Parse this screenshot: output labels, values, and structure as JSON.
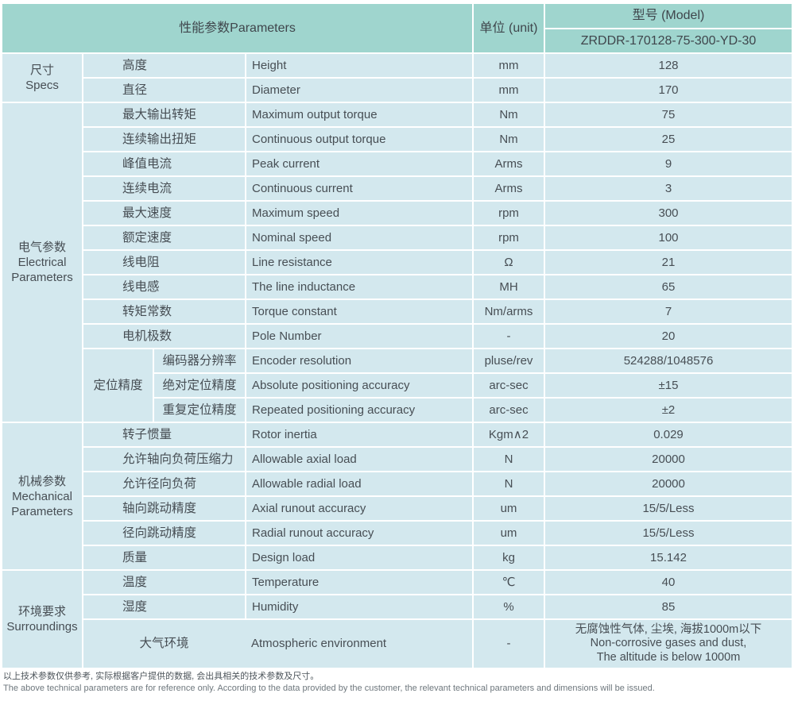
{
  "header": {
    "parameters": "性能参数Parameters",
    "unit": "单位 (unit)",
    "model": "型号 (Model)",
    "model_number": "ZRDDR-170128-75-300-YD-30"
  },
  "sections": {
    "specs": "尺寸\nSpecs",
    "electrical": "电气参数\nElectrical\nParameters",
    "mechanical": "机械参数\nMechanical\nParameters",
    "surroundings": "环境要求\nSurroundings"
  },
  "subsection": {
    "label": "定位精度"
  },
  "rows": [
    {
      "cn": "高度",
      "en": "Height",
      "unit": "mm",
      "value": "128"
    },
    {
      "cn": "直径",
      "en": "Diameter",
      "unit": "mm",
      "value": "170"
    },
    {
      "cn": "最大输出转矩",
      "en": "Maximum output torque",
      "unit": "Nm",
      "value": "75"
    },
    {
      "cn": "连续输出扭矩",
      "en": "Continuous output torque",
      "unit": "Nm",
      "value": "25"
    },
    {
      "cn": "峰值电流",
      "en": "Peak current",
      "unit": "Arms",
      "value": "9"
    },
    {
      "cn": "连续电流",
      "en": "Continuous current",
      "unit": "Arms",
      "value": "3"
    },
    {
      "cn": "最大速度",
      "en": "Maximum speed",
      "unit": "rpm",
      "value": "300"
    },
    {
      "cn": "额定速度",
      "en": "Nominal speed",
      "unit": "rpm",
      "value": "100"
    },
    {
      "cn": "线电阻",
      "en": "Line resistance",
      "unit": "Ω",
      "value": "21"
    },
    {
      "cn": "线电感",
      "en": "The line inductance",
      "unit": "MH",
      "value": "65"
    },
    {
      "cn": "转矩常数",
      "en": "Torque constant",
      "unit": "Nm/arms",
      "value": "7"
    },
    {
      "cn": "电机极数",
      "en": "Pole Number",
      "unit": "-",
      "value": "20"
    },
    {
      "cn": "编码器分辨率",
      "en": "Encoder resolution",
      "unit": "pluse/rev",
      "value": "524288/1048576"
    },
    {
      "cn": "绝对定位精度",
      "en": "Absolute positioning accuracy",
      "unit": "arc-sec",
      "value": "±15"
    },
    {
      "cn": "重复定位精度",
      "en": "Repeated positioning accuracy",
      "unit": "arc-sec",
      "value": "±2"
    },
    {
      "cn": "转子惯量",
      "en": "Rotor inertia",
      "unit": "Kgm∧2",
      "value": "0.029"
    },
    {
      "cn": "允许轴向负荷压缩力",
      "en": "Allowable axial load",
      "unit": "N",
      "value": "20000"
    },
    {
      "cn": "允许径向负荷",
      "en": "Allowable radial load",
      "unit": "N",
      "value": "20000"
    },
    {
      "cn": "轴向跳动精度",
      "en": "Axial runout accuracy",
      "unit": "um",
      "value": "15/5/Less"
    },
    {
      "cn": "径向跳动精度",
      "en": "Radial runout accuracy",
      "unit": "um",
      "value": "15/5/Less"
    },
    {
      "cn": "质量",
      "en": "Design load",
      "unit": "kg",
      "value": "15.142"
    },
    {
      "cn": "温度",
      "en": "Temperature",
      "unit": "℃",
      "value": "40"
    },
    {
      "cn": "湿度",
      "en": "Humidity",
      "unit": "%",
      "value": "85"
    }
  ],
  "atmosphere": {
    "cn": "大气环境",
    "en": "Atmospheric environment",
    "unit": "-",
    "value_lines": [
      "无腐蚀性气体, 尘埃, 海拔1000m以下",
      "Non-corrosive gases and dust,",
      "The altitude is below 1000m"
    ]
  },
  "footnote": {
    "zh": "以上技术参数仅供参考, 实际根据客户提供的数据, 会出具相关的技术参数及尺寸。",
    "en": "The above technical parameters are for reference only. According to the data provided by the customer, the relevant technical parameters and dimensions will be issued."
  },
  "colors": {
    "header_teal": "#9fd5ce",
    "cell_blue": "#d3e8ee",
    "text": "#474e54"
  }
}
